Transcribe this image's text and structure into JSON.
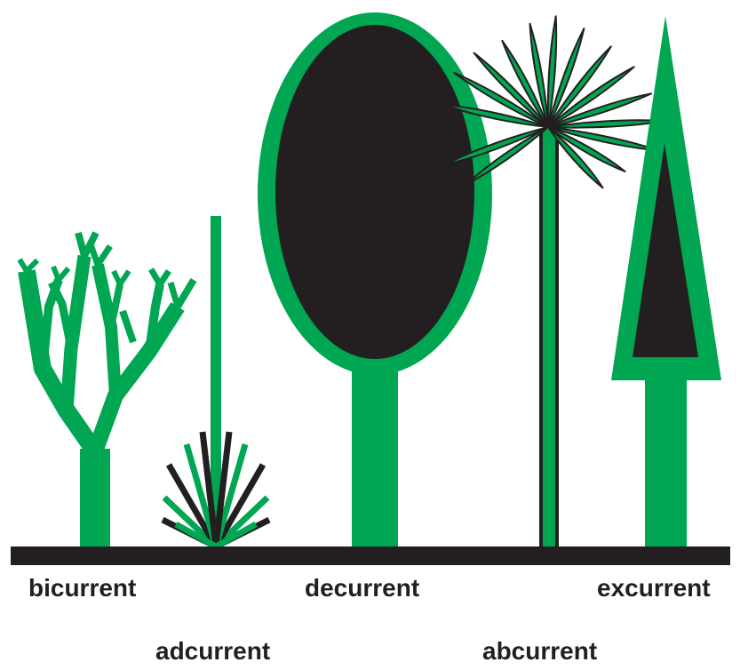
{
  "colors": {
    "green": "#00a651",
    "black": "#231f20",
    "background": "#ffffff"
  },
  "labels": {
    "bicurrent": "bicurrent",
    "adcurrent": "adcurrent",
    "decurrent": "decurrent",
    "abcurrent": "abcurrent",
    "excurrent": "excurrent"
  }
}
